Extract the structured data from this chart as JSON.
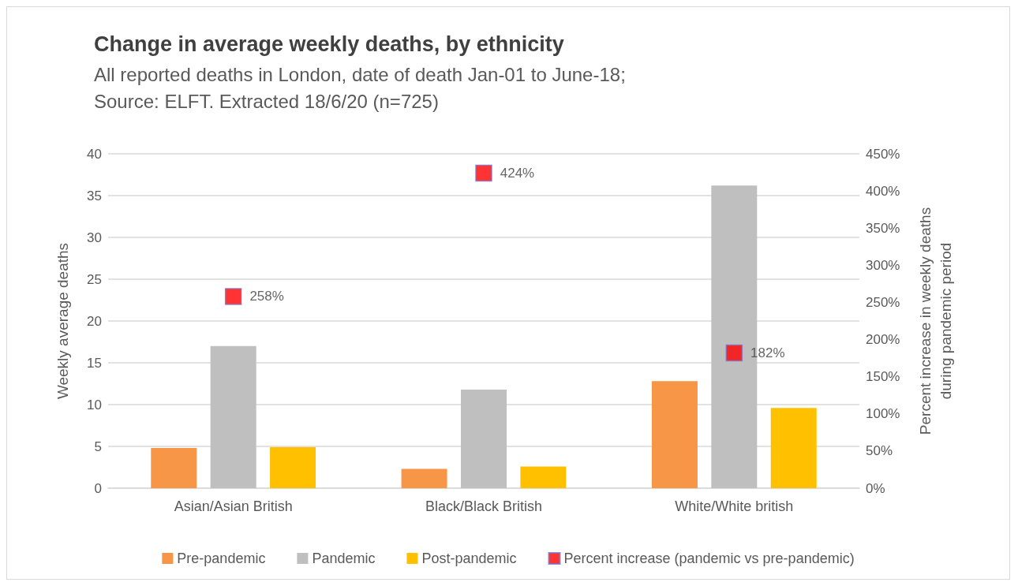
{
  "chart_data": {
    "type": "bar",
    "title": "Change in average weekly deaths, by ethnicity",
    "subtitle": "All reported deaths in London, date of death Jan-01 to June-18;\nSource: ELFT. Extracted 18/6/20 (n=725)",
    "ylabel": "Weekly average deaths",
    "y2label": "Percent increase in weekly deaths\nduring pandemic period",
    "categories": [
      "Asian/Asian British",
      "Black/Black British",
      "White/White british"
    ],
    "series": [
      {
        "name": "Pre-pandemic",
        "color": "#f79646",
        "values": [
          4.8,
          2.3,
          12.8
        ]
      },
      {
        "name": "Pandemic",
        "color": "#bfbfbf",
        "values": [
          17,
          11.8,
          36.2
        ]
      },
      {
        "name": "Post-pandemic",
        "color": "#ffc000",
        "values": [
          4.9,
          2.6,
          9.6
        ]
      },
      {
        "name": "Percent increase (pandemic vs pre-pandemic)",
        "type": "scatter",
        "axis": "y2",
        "color": "#ff0000",
        "marker": "square",
        "values": [
          258,
          424,
          182
        ],
        "value_labels": [
          "258%",
          "424%",
          "182%"
        ]
      }
    ],
    "ylim": [
      0,
      40
    ],
    "yticks": [
      0,
      5,
      10,
      15,
      20,
      25,
      30,
      35,
      40
    ],
    "y2lim": [
      0,
      450
    ],
    "y2ticks": [
      {
        "value": 0,
        "label": "0%"
      },
      {
        "value": 50,
        "label": "50%"
      },
      {
        "value": 100,
        "label": "100%"
      },
      {
        "value": 150,
        "label": "150%"
      },
      {
        "value": 200,
        "label": "200%"
      },
      {
        "value": 250,
        "label": "250%"
      },
      {
        "value": 300,
        "label": "300%"
      },
      {
        "value": 350,
        "label": "350%"
      },
      {
        "value": 400,
        "label": "400%"
      },
      {
        "value": 450,
        "label": "450%"
      }
    ],
    "grid": "y",
    "legend": "bottom"
  }
}
